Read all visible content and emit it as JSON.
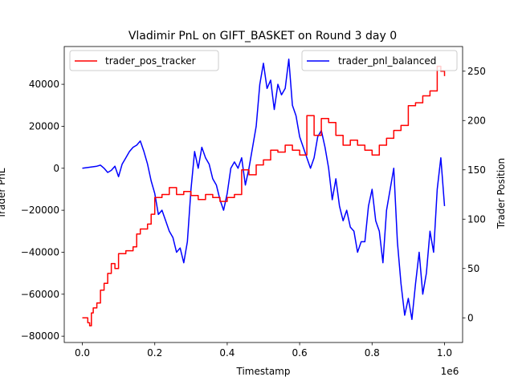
{
  "chart_data": {
    "type": "line",
    "title": "Vladimir PnL on GIFT_BASKET on Round 3 day 0",
    "xlabel": "Timestamp",
    "x_offset_text": "1e6",
    "ylabel_left": "Trader PnL",
    "ylabel_right": "Trader Position",
    "xlim": [
      -0.05,
      1.05
    ],
    "ylim_left": [
      -83000,
      58000
    ],
    "ylim_right": [
      -25,
      275
    ],
    "x_ticks": [
      0.0,
      0.2,
      0.4,
      0.6,
      0.8,
      1.0
    ],
    "x_tick_labels": [
      "0.0",
      "0.2",
      "0.4",
      "0.6",
      "0.8",
      "1.0"
    ],
    "y_left_ticks": [
      -80000,
      -60000,
      -40000,
      -20000,
      0,
      20000,
      40000
    ],
    "y_left_tick_labels": [
      "−80000",
      "−60000",
      "−40000",
      "−20000",
      "0",
      "20000",
      "40000"
    ],
    "y_right_ticks": [
      0,
      50,
      100,
      150,
      200,
      250
    ],
    "y_right_tick_labels": [
      "0",
      "50",
      "100",
      "150",
      "200",
      "250"
    ],
    "grid": false,
    "series": [
      {
        "name": "trader_pnl_balanced",
        "axis": "left",
        "color": "#0000ff",
        "x": [
          0.0,
          0.02,
          0.04,
          0.05,
          0.06,
          0.07,
          0.08,
          0.09,
          0.1,
          0.11,
          0.12,
          0.13,
          0.14,
          0.15,
          0.16,
          0.17,
          0.18,
          0.19,
          0.2,
          0.21,
          0.22,
          0.23,
          0.24,
          0.25,
          0.26,
          0.27,
          0.28,
          0.29,
          0.3,
          0.31,
          0.32,
          0.33,
          0.34,
          0.35,
          0.36,
          0.37,
          0.38,
          0.39,
          0.4,
          0.41,
          0.42,
          0.43,
          0.44,
          0.45,
          0.46,
          0.47,
          0.48,
          0.49,
          0.5,
          0.51,
          0.52,
          0.53,
          0.54,
          0.55,
          0.56,
          0.57,
          0.58,
          0.59,
          0.6,
          0.61,
          0.62,
          0.63,
          0.64,
          0.65,
          0.66,
          0.67,
          0.68,
          0.69,
          0.7,
          0.71,
          0.72,
          0.73,
          0.74,
          0.75,
          0.76,
          0.77,
          0.78,
          0.79,
          0.8,
          0.81,
          0.82,
          0.83,
          0.84,
          0.85,
          0.86,
          0.87,
          0.88,
          0.89,
          0.9,
          0.91,
          0.92,
          0.93,
          0.94,
          0.95,
          0.96,
          0.97,
          0.98,
          0.99,
          1.0
        ],
        "y": [
          0,
          500,
          1000,
          1500,
          0,
          -2000,
          -1000,
          1000,
          -4000,
          2000,
          5000,
          8000,
          10000,
          11000,
          13000,
          8000,
          2000,
          -6000,
          -12000,
          -22000,
          -20000,
          -25000,
          -30000,
          -33000,
          -40000,
          -38000,
          -45000,
          -35000,
          -10000,
          8000,
          0,
          10000,
          5000,
          2000,
          -5000,
          -8000,
          -15000,
          -20000,
          -12000,
          0,
          3000,
          0,
          5000,
          -8000,
          0,
          10000,
          20000,
          40000,
          50000,
          38000,
          42000,
          28000,
          40000,
          35000,
          38000,
          52000,
          30000,
          25000,
          15000,
          10000,
          5000,
          0,
          5000,
          15000,
          18000,
          10000,
          0,
          -15000,
          -5000,
          -18000,
          -25000,
          -20000,
          -28000,
          -30000,
          -40000,
          -35000,
          -35000,
          -18000,
          -10000,
          -25000,
          -30000,
          -45000,
          -20000,
          -10000,
          0,
          -35000,
          -55000,
          -70000,
          -62000,
          -72000,
          -55000,
          -40000,
          -60000,
          -50000,
          -30000,
          -40000,
          -10000,
          5000,
          -18000
        ]
      },
      {
        "name": "trader_pos_tracker",
        "axis": "right",
        "color": "#ff0000",
        "x": [
          0.0,
          0.01,
          0.015,
          0.02,
          0.025,
          0.03,
          0.04,
          0.05,
          0.06,
          0.07,
          0.08,
          0.09,
          0.1,
          0.12,
          0.14,
          0.15,
          0.16,
          0.18,
          0.19,
          0.2,
          0.22,
          0.24,
          0.26,
          0.28,
          0.3,
          0.32,
          0.34,
          0.36,
          0.38,
          0.4,
          0.42,
          0.44,
          0.46,
          0.48,
          0.5,
          0.52,
          0.54,
          0.56,
          0.58,
          0.6,
          0.62,
          0.64,
          0.66,
          0.68,
          0.7,
          0.72,
          0.74,
          0.76,
          0.78,
          0.8,
          0.82,
          0.84,
          0.86,
          0.88,
          0.9,
          0.92,
          0.94,
          0.96,
          0.98,
          0.99,
          1.0
        ],
        "y": [
          0,
          0,
          -5,
          -8,
          5,
          10,
          15,
          28,
          35,
          45,
          55,
          50,
          65,
          68,
          72,
          85,
          90,
          95,
          105,
          122,
          125,
          132,
          125,
          128,
          124,
          120,
          125,
          122,
          118,
          122,
          125,
          150,
          145,
          155,
          160,
          170,
          168,
          175,
          170,
          165,
          205,
          185,
          202,
          198,
          185,
          175,
          180,
          175,
          170,
          165,
          175,
          182,
          190,
          195,
          215,
          218,
          225,
          230,
          255,
          250,
          245
        ]
      }
    ],
    "legend_left": "trader_pos_tracker",
    "legend_right": "trader_pnl_balanced"
  }
}
